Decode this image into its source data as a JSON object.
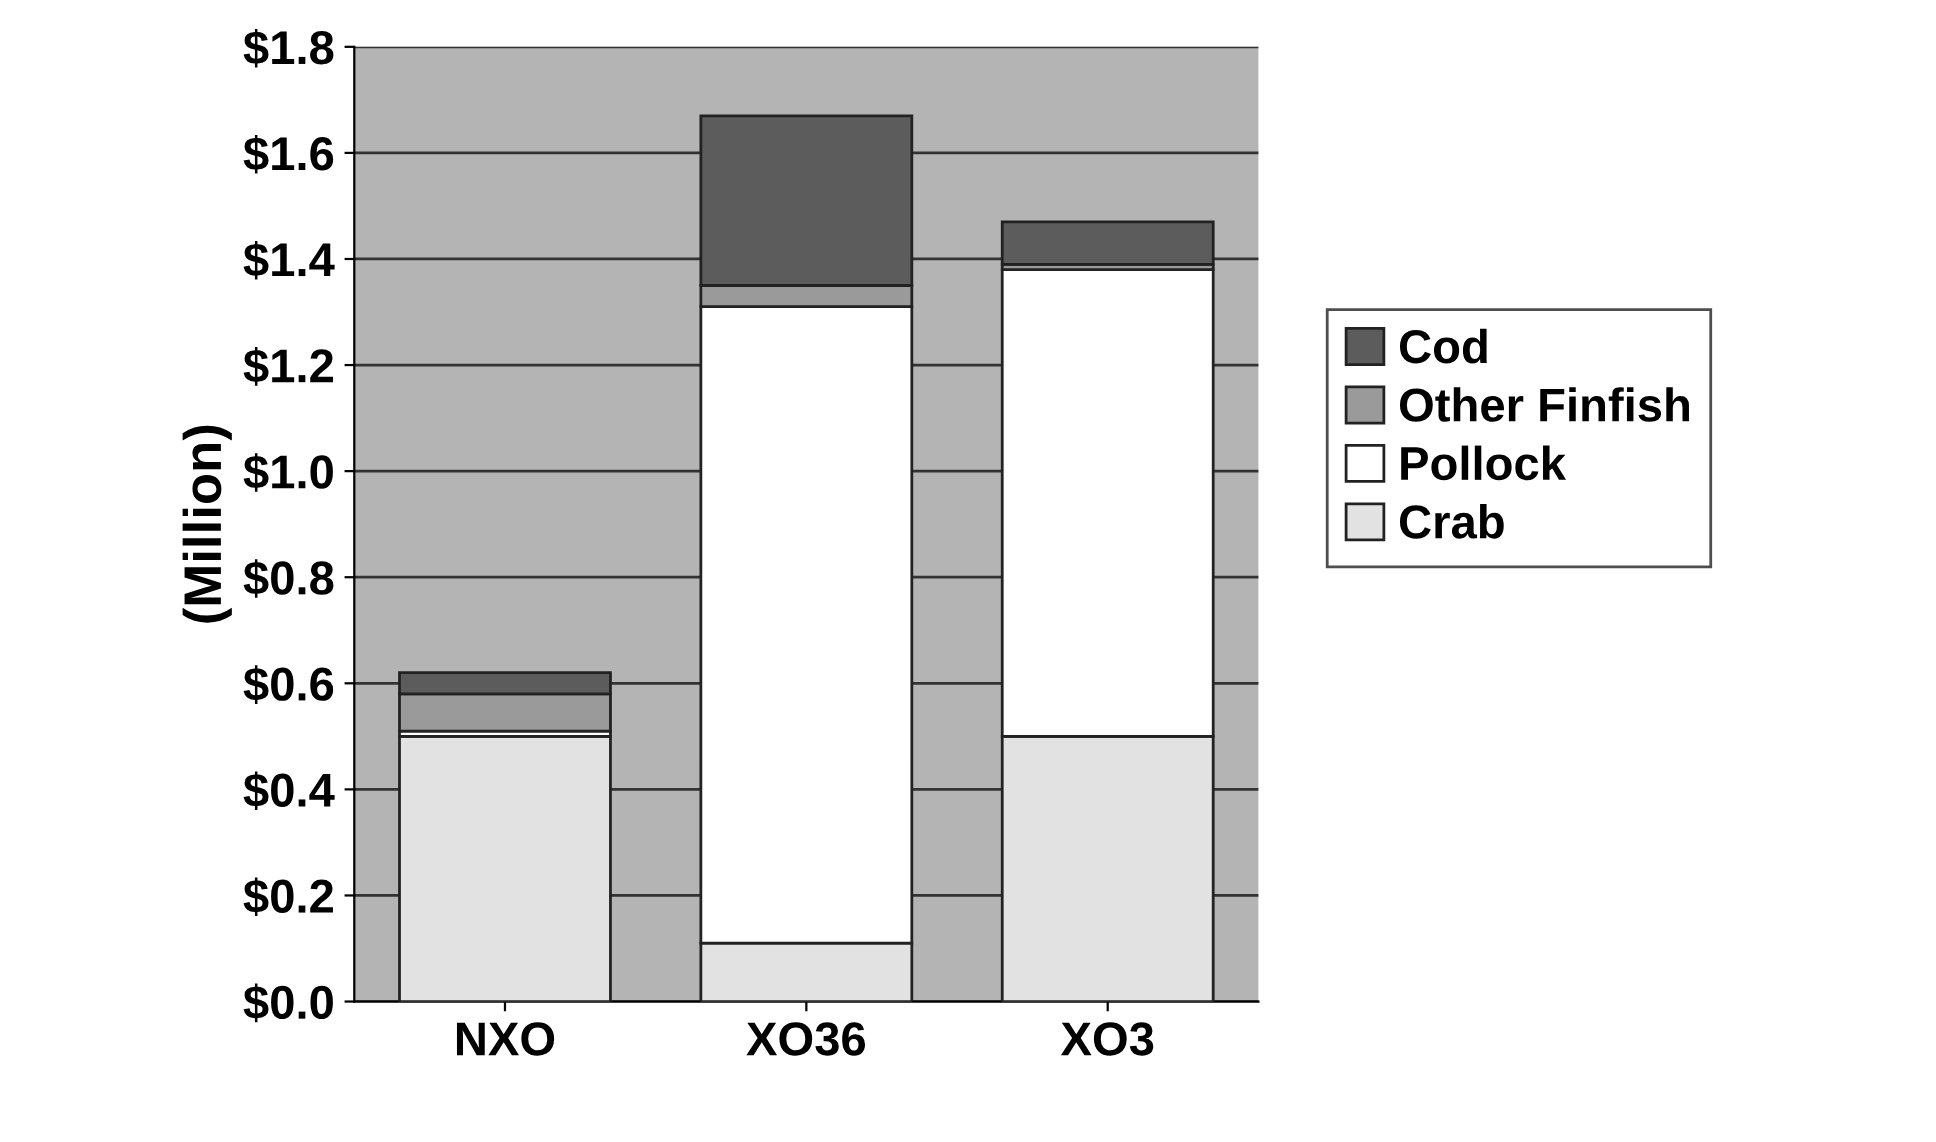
{
  "chart_data": {
    "type": "bar",
    "stacked": true,
    "ylabel": "(Million)",
    "categories": [
      "NXO",
      "XO36",
      "XO3"
    ],
    "series": [
      {
        "name": "Crab",
        "color": "#e2e2e2",
        "values": [
          0.5,
          0.11,
          0.5
        ]
      },
      {
        "name": "Pollock",
        "color": "#ffffff",
        "values": [
          0.01,
          1.2,
          0.88
        ]
      },
      {
        "name": "Other Finfish",
        "color": "#9a9a9a",
        "values": [
          0.07,
          0.04,
          0.01
        ]
      },
      {
        "name": "Cod",
        "color": "#5c5c5c",
        "values": [
          0.04,
          0.32,
          0.08
        ]
      }
    ],
    "ylim": [
      0,
      1.8
    ],
    "yticks": [
      {
        "value": 0,
        "label": "$0.0"
      },
      {
        "value": 0.2,
        "label": "$0.2"
      },
      {
        "value": 0.4,
        "label": "$0.4"
      },
      {
        "value": 0.6,
        "label": "$0.6"
      },
      {
        "value": 0.8,
        "label": "$0.8"
      },
      {
        "value": 1.0,
        "label": "$1.0"
      },
      {
        "value": 1.2,
        "label": "$1.2"
      },
      {
        "value": 1.4,
        "label": "$1.4"
      },
      {
        "value": 1.6,
        "label": "$1.6"
      },
      {
        "value": 1.8,
        "label": "$1.8"
      }
    ],
    "grid": "y",
    "legend": "right"
  }
}
